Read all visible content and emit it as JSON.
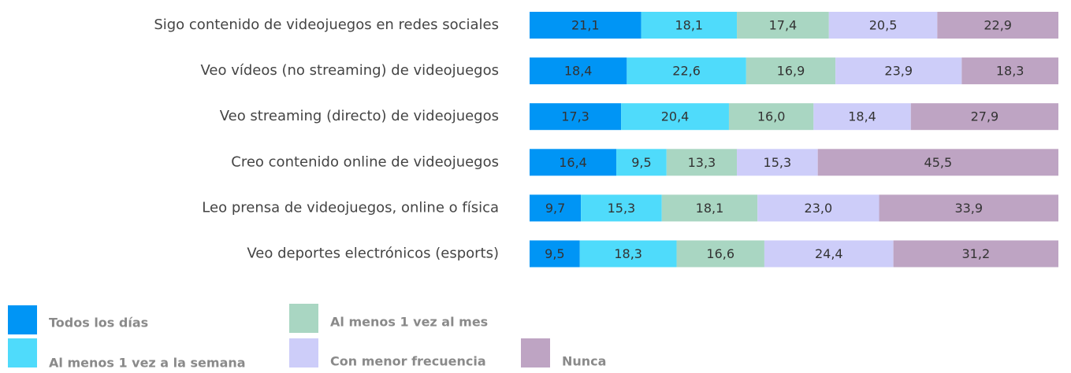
{
  "chart_data": {
    "type": "bar",
    "orientation": "horizontal",
    "stacked": true,
    "categories": [
      "Sigo contenido de videojuegos en redes sociales",
      "Veo vídeos (no streaming) de videojuegos",
      "Veo streaming (directo) de videojuegos",
      "Creo contenido online de videojuegos",
      "Leo prensa de videojuegos, online o física",
      "Veo deportes electrónicos (esports)"
    ],
    "series": [
      {
        "name": "Todos los días",
        "color": "#0095f5",
        "values": [
          21.1,
          18.4,
          17.3,
          16.4,
          9.7,
          9.5
        ],
        "value_labels": [
          "21,1",
          "18,4",
          "17,3",
          "16,4",
          "9,7",
          "9,5"
        ]
      },
      {
        "name": "Al menos 1 vez a la semana",
        "color": "#4fdbfb",
        "values": [
          18.1,
          22.6,
          20.4,
          9.5,
          15.3,
          18.3
        ],
        "value_labels": [
          "18,1",
          "22,6",
          "20,4",
          "9,5",
          "15,3",
          "18,3"
        ]
      },
      {
        "name": "Al menos 1 vez al mes",
        "color": "#a9d6c2",
        "values": [
          17.4,
          16.9,
          16.0,
          13.3,
          18.1,
          16.6
        ],
        "value_labels": [
          "17,4",
          "16,9",
          "16,0",
          "13,3",
          "18,1",
          "16,6"
        ]
      },
      {
        "name": "Con menor frecuencia",
        "color": "#cdcdf9",
        "values": [
          20.5,
          23.9,
          18.4,
          15.3,
          23.0,
          24.4
        ],
        "value_labels": [
          "20,5",
          "23,9",
          "18,4",
          "15,3",
          "23,0",
          "24,4"
        ]
      },
      {
        "name": "Nunca",
        "color": "#bea4c3",
        "values": [
          22.9,
          18.3,
          27.9,
          45.5,
          33.9,
          31.2
        ],
        "value_labels": [
          "22,9",
          "18,3",
          "27,9",
          "45,5",
          "33,9",
          "31,2"
        ]
      }
    ]
  }
}
